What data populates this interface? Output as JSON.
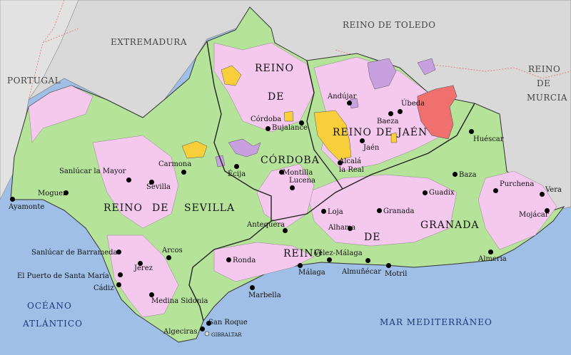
{
  "regions": {
    "extremadura": "EXTREMADURA",
    "portugal": "PORTUGAL",
    "reino_toledo": "REINO DE TOLEDO",
    "reino_murcia_1": "REINO",
    "reino_murcia_2": "DE",
    "reino_murcia_3": "MURCIA"
  },
  "kingdoms": {
    "sevilla_1": "REINO",
    "sevilla_2": "DE",
    "sevilla_3": "SEVILLA",
    "cordoba_1": "REINO",
    "cordoba_2": "DE",
    "cordoba_3": "CÓRDOBA",
    "jaen_1": "REINO",
    "jaen_2": "DE",
    "jaen_3": "JAÉN",
    "granada_1": "REINO",
    "granada_2": "DE",
    "granada_3": "GRANADA"
  },
  "seas": {
    "oceano": "OCÉANO",
    "atlantico": "ATLÁNTICO",
    "mediterraneo": "MAR MEDITERRÁNEO"
  },
  "cities": {
    "ayamonte": "Ayamonte",
    "moguer": "Moguer",
    "sanlucar_mayor": "Sanlúcar la Mayor",
    "sevilla": "Sevilla",
    "carmona": "Carmona",
    "ecija": "Écija",
    "cordoba": "Córdoba",
    "bujalance": "Bujalance",
    "andujar": "Andújar",
    "ubeda": "Úbeda",
    "baeza": "Baeza",
    "jaen": "Jaén",
    "alcala_real_1": "Alcalá",
    "alcala_real_2": "la Real",
    "montilla": "Montilla",
    "lucena": "Lucena",
    "huescar": "Huéscar",
    "baza": "Baza",
    "guadix": "Guadix",
    "purchena": "Purchena",
    "vera": "Vera",
    "mojacar": "Mojácar",
    "almeria": "Almería",
    "loja": "Loja",
    "granada": "Granada",
    "alhama": "Alhama",
    "antequera": "Antequera",
    "velez_malaga": "Vélez-Málaga",
    "malaga": "Málaga",
    "almunecar": "Almuñécar",
    "motril": "Motril",
    "ronda": "Ronda",
    "marbella": "Marbella",
    "arcos": "Arcos",
    "jerez": "Jerez",
    "sanlucar_barrameda": "Sanlúcar de Barrameda",
    "puerto_santa_maria": "El Puerto de Santa María",
    "cadiz": "Cádiz",
    "medina_sidonia": "Medina Sidonia",
    "san_roque": "San Roque",
    "algeciras": "Algeciras",
    "gibraltar": "GIBRALTAR"
  },
  "colors": {
    "sea": "#9fbfe6",
    "outside": "#d9d9d9",
    "realengo_green": "#b6e39a",
    "senorio_pink": "#f5c8ee",
    "abadengo_purple": "#c8a0e0",
    "orders_yellow": "#f8cf3a",
    "red_area": "#f07070"
  }
}
